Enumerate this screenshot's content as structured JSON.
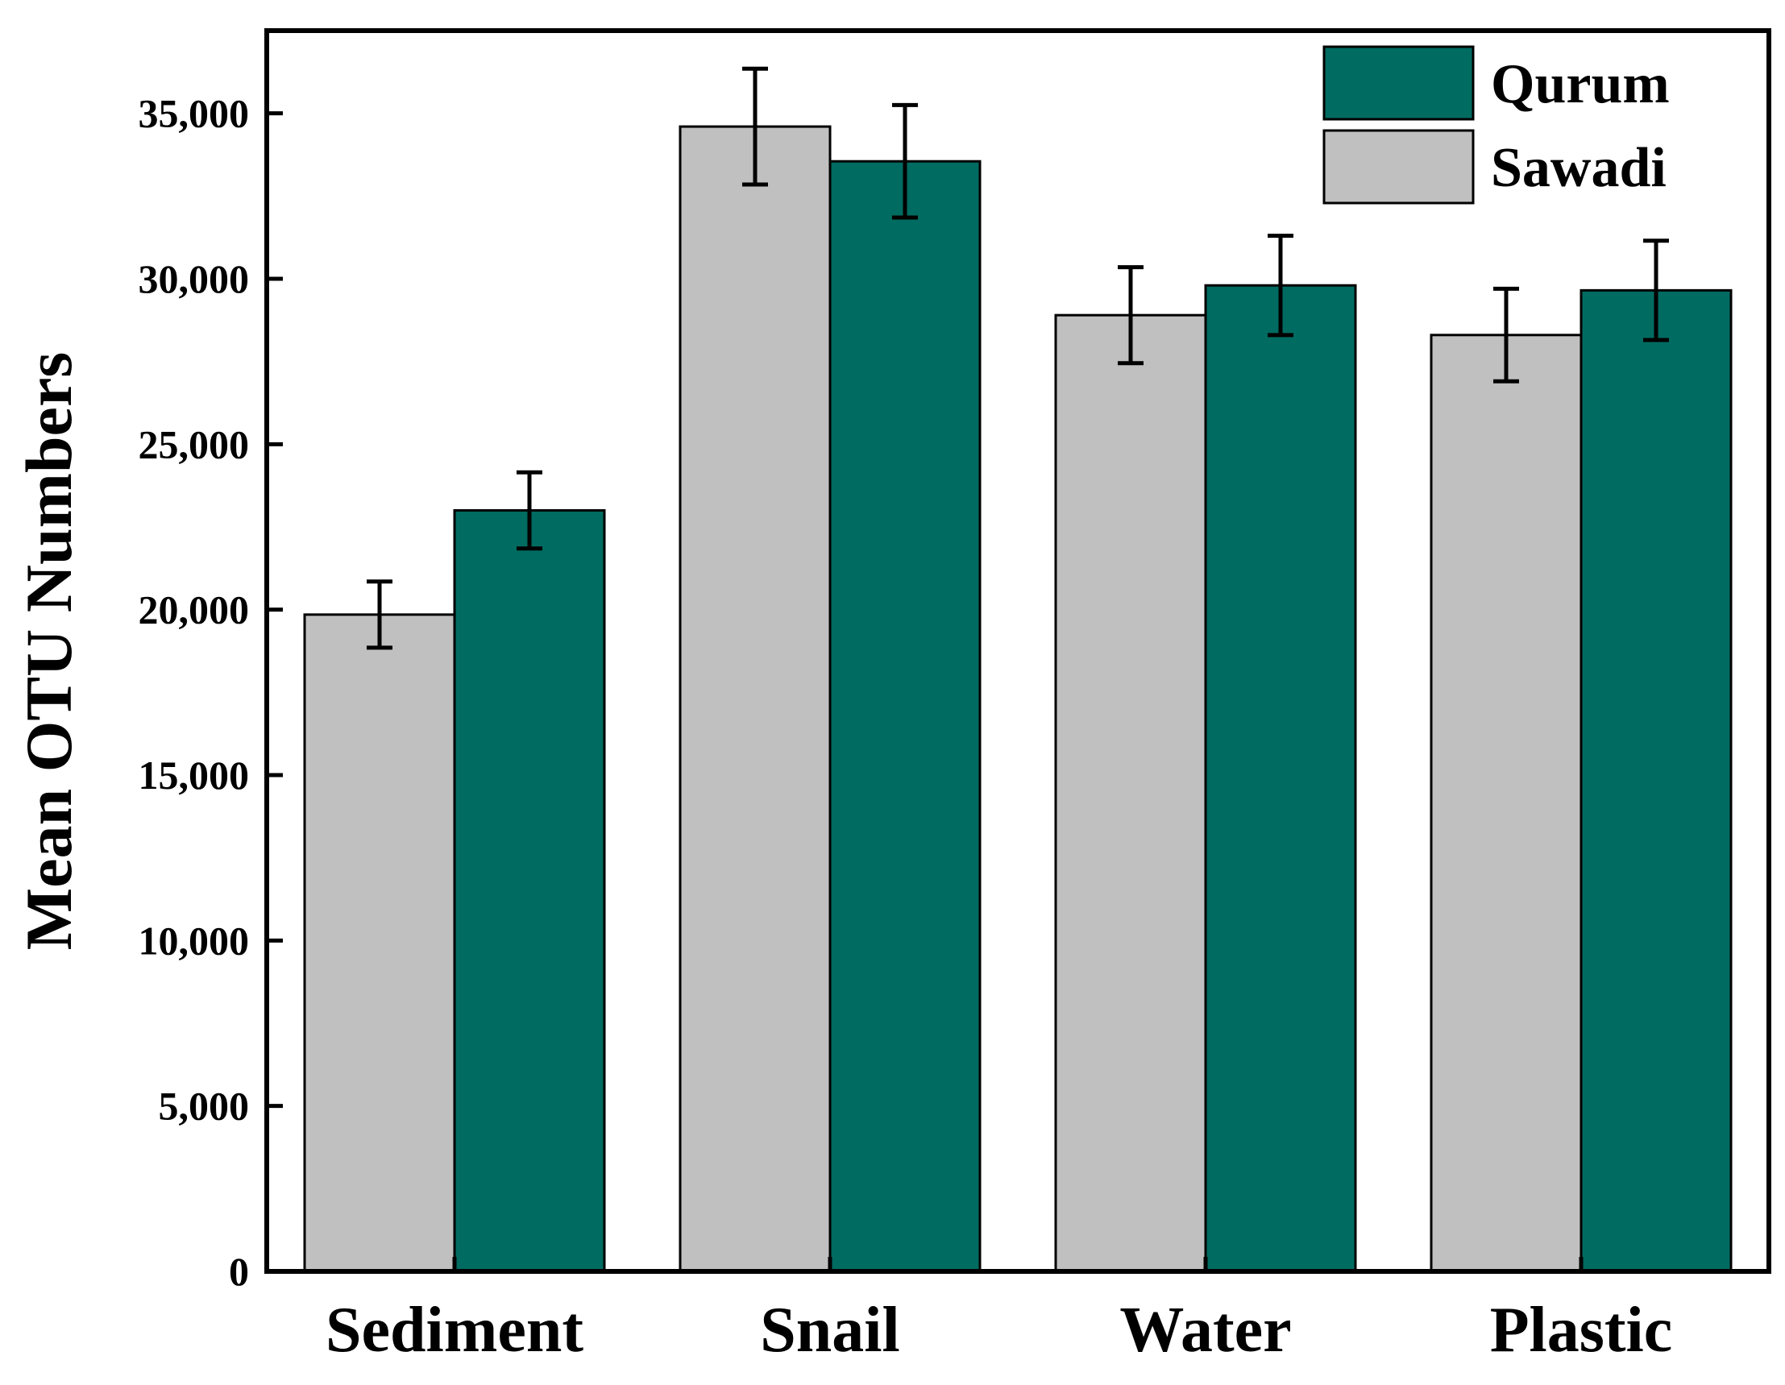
{
  "chart_data": {
    "type": "bar",
    "title": "",
    "xlabel": "",
    "ylabel": "Mean OTU Numbers",
    "ylim": [
      0,
      37500
    ],
    "yticks": [
      0,
      5000,
      10000,
      15000,
      20000,
      25000,
      30000,
      35000
    ],
    "ytick_labels": [
      "0",
      "5,000",
      "10,000",
      "15,000",
      "20,000",
      "25,000",
      "30,000",
      "35,000"
    ],
    "categories": [
      "Sediment",
      "Snail",
      "Water",
      "Plastic"
    ],
    "series": [
      {
        "name": "Sawadi",
        "color": "#c0c0c0",
        "values": [
          19850,
          34600,
          28900,
          28300
        ],
        "errors": [
          1000,
          1750,
          1450,
          1400
        ]
      },
      {
        "name": "Qurum",
        "color": "#006b61",
        "values": [
          23000,
          33550,
          29800,
          29650
        ],
        "errors": [
          1150,
          1700,
          1500,
          1500
        ]
      }
    ],
    "legend": {
      "position": "top-right",
      "entries": [
        {
          "label": "Qurum",
          "color": "#006b61"
        },
        {
          "label": "Sawadi",
          "color": "#c0c0c0"
        }
      ]
    },
    "grid": false
  }
}
